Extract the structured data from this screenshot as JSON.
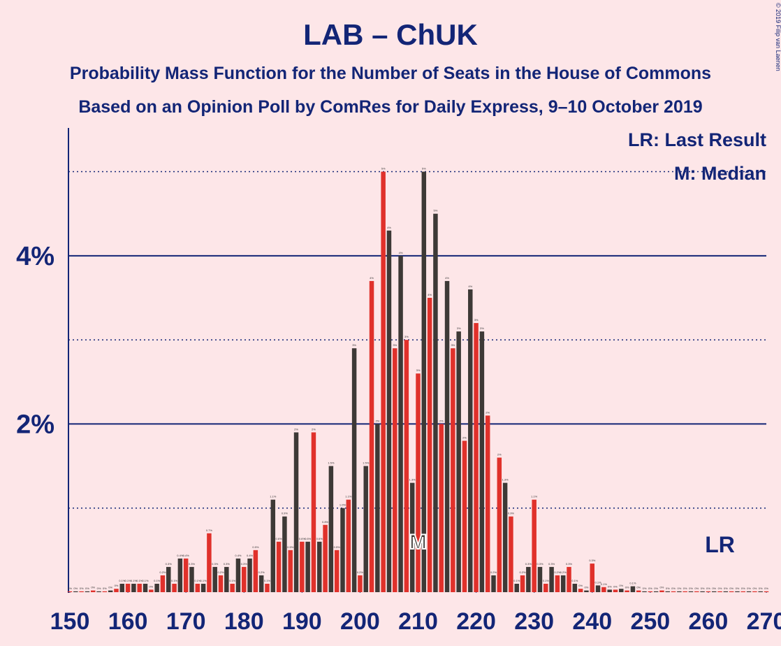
{
  "chart_data": {
    "type": "bar",
    "title": "LAB – ChUK",
    "subtitle": "Probability Mass Function for the Number of Seats in the House of Commons",
    "subtitle2": "Based on an Opinion Poll by ComRes for Daily Express, 9–10 October 2019",
    "copyright": "© 2019 Filip van Laenen",
    "legend": [
      "LR: Last Result",
      "M: Median"
    ],
    "median": 210,
    "median_label": "M",
    "last_result": 262,
    "last_result_label": "LR",
    "x": [
      150,
      151,
      152,
      153,
      154,
      155,
      156,
      157,
      158,
      159,
      160,
      161,
      162,
      163,
      164,
      165,
      166,
      167,
      168,
      169,
      170,
      171,
      172,
      173,
      174,
      175,
      176,
      177,
      178,
      179,
      180,
      181,
      182,
      183,
      184,
      185,
      186,
      187,
      188,
      189,
      190,
      191,
      192,
      193,
      194,
      195,
      196,
      197,
      198,
      199,
      200,
      201,
      202,
      203,
      204,
      205,
      206,
      207,
      208,
      209,
      210,
      211,
      212,
      213,
      214,
      215,
      216,
      217,
      218,
      219,
      220,
      221,
      222,
      223,
      224,
      225,
      226,
      227,
      228,
      229,
      230,
      231,
      232,
      233,
      234,
      235,
      236,
      237,
      238,
      239,
      240,
      241,
      242,
      243,
      244,
      245,
      246,
      247,
      248,
      249,
      250,
      251,
      252,
      253,
      254,
      255,
      256,
      257,
      258,
      259,
      260,
      261,
      262,
      263,
      264,
      265,
      266,
      267,
      268,
      269,
      270
    ],
    "values": [
      0.01,
      0.01,
      0.01,
      0.01,
      0.02,
      0.01,
      0.01,
      0.02,
      0.04,
      0.1,
      0.1,
      0.1,
      0.1,
      0.1,
      0.03,
      0.1,
      0.2,
      0.3,
      0.1,
      0.4,
      0.4,
      0.3,
      0.1,
      0.1,
      0.7,
      0.3,
      0.2,
      0.3,
      0.1,
      0.4,
      0.3,
      0.4,
      0.5,
      0.2,
      0.1,
      1.1,
      0.6,
      0.9,
      0.5,
      1.9,
      0.6,
      0.6,
      1.9,
      0.6,
      0.8,
      1.5,
      0.5,
      1.0,
      1.1,
      2.9,
      0.2,
      1.5,
      3.7,
      2.0,
      5.0,
      4.3,
      2.9,
      4.0,
      3.0,
      1.3,
      2.6,
      5.0,
      3.5,
      4.5,
      2.0,
      3.7,
      2.9,
      3.1,
      1.8,
      3.6,
      3.2,
      3.1,
      2.1,
      0.2,
      1.6,
      1.3,
      0.9,
      0.1,
      0.2,
      0.3,
      1.1,
      0.3,
      0.1,
      0.3,
      0.2,
      0.2,
      0.3,
      0.1,
      0.04,
      0.02,
      0.34,
      0.08,
      0.06,
      0.03,
      0.03,
      0.04,
      0.02,
      0.07,
      0.02,
      0.01,
      0.01,
      0.01,
      0.02,
      0.01,
      0.01,
      0.01,
      0.01,
      0.01,
      0.01,
      0.01,
      0.01,
      0.01,
      0.01,
      0.01,
      0.01,
      0.01,
      0.01,
      0.01,
      0.01,
      0.01,
      0.01
    ],
    "value_labels": [
      "0%",
      "0%",
      "0%",
      "0%",
      "0%",
      "0%",
      "0%",
      "0%",
      "0%",
      "0.1%",
      "0.1%",
      "0.1%",
      "0.1%",
      "0.1%",
      "0%",
      "0.1%",
      "0.2%",
      "0.3%",
      "0.1%",
      "0.4%",
      "0.4%",
      "0.3%",
      "0.1%",
      "0.1%",
      "0.7%",
      "0.3%",
      "0.2%",
      "0.3%",
      "0.1%",
      "0.4%",
      "0.3%",
      "0.4%",
      "0.5%",
      "0.2%",
      "0.1%",
      "1.1%",
      "0.6%",
      "0.9%",
      "0.5%",
      "2%",
      "0.6%",
      "0.6%",
      "2%",
      "0.6%",
      "0.8%",
      "1.5%",
      "0.5%",
      "1.0%",
      "1.1%",
      "3%",
      "0.2%",
      "1.5%",
      "4%",
      "2%",
      "5%",
      "4%",
      "3%",
      "4%",
      "3%",
      "1.3%",
      "3%",
      "5%",
      "4%",
      "5%",
      "2%",
      "4%",
      "3%",
      "3%",
      "2%",
      "4%",
      "3%",
      "3%",
      "2%",
      "0.2%",
      "2%",
      "1.3%",
      "0.9%",
      "0.1%",
      "0.2%",
      "0.3%",
      "1.1%",
      "0.3%",
      "0.1%",
      "0.3%",
      "0.2%",
      "0.2%",
      "0.3%",
      "0.1%",
      "0%",
      "0%",
      "0.3%",
      "0.1%",
      "0.1%",
      "0%",
      "0%",
      "0%",
      "0%",
      "0.1%",
      "0%",
      "0%",
      "0%",
      "0%",
      "0%",
      "0%",
      "0%",
      "0%",
      "0%",
      "0%",
      "0%",
      "0%",
      "0%",
      "0%",
      "0%",
      "0%",
      "0%",
      "0%",
      "0%",
      "0%",
      "0%",
      "0%",
      "0%"
    ],
    "colors": [
      "#e0312b",
      "#3d3936"
    ],
    "xlim": [
      150,
      270
    ],
    "xticks": [
      150,
      160,
      170,
      180,
      190,
      200,
      210,
      220,
      230,
      240,
      250,
      260,
      270
    ],
    "ylim": [
      0,
      5.52
    ],
    "yticks": [
      {
        "value": 2,
        "label": "2%"
      },
      {
        "value": 4,
        "label": "4%"
      }
    ],
    "yminor": [
      1,
      3,
      5
    ],
    "grid": true
  }
}
